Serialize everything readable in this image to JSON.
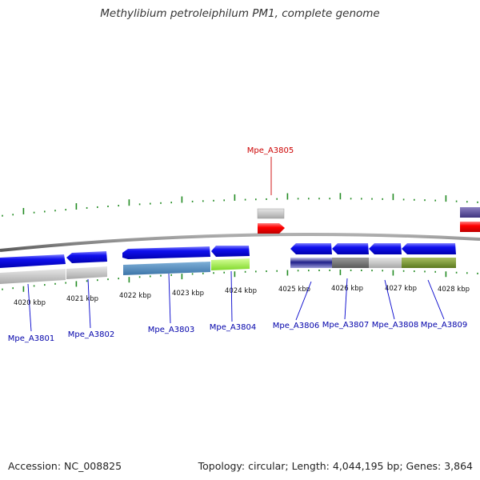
{
  "title": "Methylibium petroleiphilum PM1, complete genome",
  "footer": {
    "accession": "Accession: NC_008825",
    "stats": "Topology: circular; Length: 4,044,195 bp; Genes: 3,864"
  },
  "map": {
    "colors": {
      "forward_cds": "#0000ee",
      "reverse_cds": "#0000ee",
      "trna": "#ee0000",
      "backbone": "#888888",
      "tick": "#228b22",
      "gene_label": "#0000aa",
      "trna_label": "#cc0000"
    },
    "coordinate_labels": [
      "4020 kbp",
      "4021 kbp",
      "4022 kbp",
      "4023 kbp",
      "4024 kbp",
      "4025 kbp",
      "4026 kbp",
      "4027 kbp",
      "4028 kbp"
    ],
    "genes": [
      {
        "label": "Mpe_A3801",
        "strand": "-"
      },
      {
        "label": "Mpe_A3802",
        "strand": "-"
      },
      {
        "label": "Mpe_A3803",
        "strand": "+"
      },
      {
        "label": "Mpe_A3804",
        "strand": "-"
      },
      {
        "label": "Mpe_A3805",
        "strand": "+",
        "type": "tRNA"
      },
      {
        "label": "Mpe_A3806",
        "strand": "-"
      },
      {
        "label": "Mpe_A3807",
        "strand": "-"
      },
      {
        "label": "Mpe_A3808",
        "strand": "-"
      },
      {
        "label": "Mpe_A3809",
        "strand": "-"
      }
    ]
  }
}
